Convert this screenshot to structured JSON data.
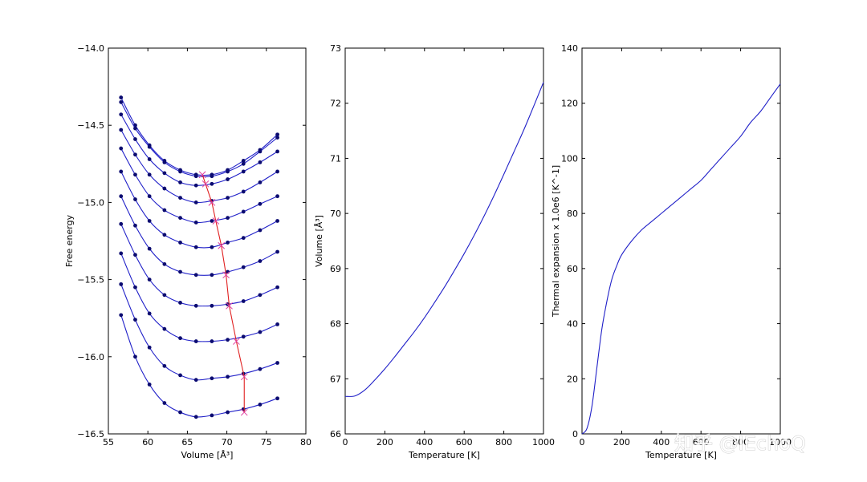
{
  "watermark": "知乎 @IEchoQ",
  "colors": {
    "curve": "#2020c8",
    "points": "#0b0b70",
    "eq_line": "#e02020",
    "eq_marker": "#e040a0"
  },
  "chart_data": [
    {
      "type": "line",
      "panel": "free-energy",
      "xlabel": "Volume [Å³]",
      "ylabel": "Free energy",
      "xlim": [
        55,
        80
      ],
      "ylim": [
        -16.5,
        -14.0
      ],
      "xticks": [
        "55",
        "60",
        "65",
        "70",
        "75",
        "80"
      ],
      "yticks": [
        "−16.5",
        "−16.0",
        "−15.5",
        "−15.0",
        "−14.5",
        "−14.0"
      ],
      "grid": false,
      "volumes": [
        56.6,
        58.4,
        60.2,
        62.1,
        64.1,
        66.1,
        68.1,
        70.1,
        72.1,
        74.2,
        76.4
      ],
      "series": [
        {
          "values": [
            -14.32,
            -14.5,
            -14.63,
            -14.73,
            -14.79,
            -14.82,
            -14.82,
            -14.79,
            -14.73,
            -14.66,
            -14.56
          ]
        },
        {
          "values": [
            -14.35,
            -14.52,
            -14.64,
            -14.74,
            -14.8,
            -14.83,
            -14.83,
            -14.8,
            -14.75,
            -14.67,
            -14.58
          ]
        },
        {
          "values": [
            -14.43,
            -14.59,
            -14.72,
            -14.81,
            -14.87,
            -14.89,
            -14.88,
            -14.85,
            -14.8,
            -14.74,
            -14.67
          ]
        },
        {
          "values": [
            -14.53,
            -14.69,
            -14.82,
            -14.91,
            -14.97,
            -15.0,
            -14.99,
            -14.97,
            -14.93,
            -14.87,
            -14.8
          ]
        },
        {
          "values": [
            -14.65,
            -14.82,
            -14.96,
            -15.05,
            -15.1,
            -15.13,
            -15.12,
            -15.1,
            -15.06,
            -15.01,
            -14.96
          ]
        },
        {
          "values": [
            -14.8,
            -14.98,
            -15.12,
            -15.21,
            -15.26,
            -15.29,
            -15.29,
            -15.26,
            -15.23,
            -15.18,
            -15.12
          ]
        },
        {
          "values": [
            -14.96,
            -15.15,
            -15.3,
            -15.4,
            -15.45,
            -15.47,
            -15.47,
            -15.45,
            -15.42,
            -15.38,
            -15.32
          ]
        },
        {
          "values": [
            -15.14,
            -15.34,
            -15.5,
            -15.6,
            -15.65,
            -15.67,
            -15.67,
            -15.66,
            -15.64,
            -15.6,
            -15.55
          ]
        },
        {
          "values": [
            -15.33,
            -15.55,
            -15.72,
            -15.82,
            -15.88,
            -15.9,
            -15.9,
            -15.89,
            -15.87,
            -15.84,
            -15.79
          ]
        },
        {
          "values": [
            -15.53,
            -15.76,
            -15.94,
            -16.06,
            -16.12,
            -16.15,
            -16.14,
            -16.13,
            -16.11,
            -16.08,
            -16.04
          ]
        },
        {
          "values": [
            -15.73,
            -16.0,
            -16.18,
            -16.3,
            -16.36,
            -16.39,
            -16.38,
            -16.36,
            -16.34,
            -16.31,
            -16.27
          ]
        }
      ],
      "equilibrium": {
        "volume": [
          66.9,
          67.3,
          68.1,
          68.6,
          69.3,
          69.9,
          70.3,
          71.2,
          72.2,
          72.2
        ],
        "energy": [
          -14.82,
          -14.88,
          -15.0,
          -15.12,
          -15.28,
          -15.47,
          -15.67,
          -15.9,
          -16.13,
          -16.36
        ]
      }
    },
    {
      "type": "line",
      "panel": "volume-vs-temperature",
      "xlabel": "Temperature [K]",
      "ylabel": "Volume [Å³]",
      "xlim": [
        0,
        1000
      ],
      "ylim": [
        66,
        73
      ],
      "xticks": [
        "0",
        "200",
        "400",
        "600",
        "800",
        "1000"
      ],
      "yticks": [
        "66",
        "67",
        "68",
        "69",
        "70",
        "71",
        "72",
        "73"
      ],
      "grid": false,
      "x": [
        0,
        50,
        100,
        150,
        200,
        250,
        300,
        350,
        400,
        450,
        500,
        550,
        600,
        650,
        700,
        750,
        800,
        850,
        900,
        950,
        1000
      ],
      "y": [
        66.68,
        66.69,
        66.8,
        66.98,
        67.18,
        67.4,
        67.63,
        67.86,
        68.11,
        68.38,
        68.66,
        68.96,
        69.27,
        69.6,
        69.95,
        70.32,
        70.71,
        71.11,
        71.51,
        71.94,
        72.38
      ]
    },
    {
      "type": "line",
      "panel": "thermal-expansion",
      "xlabel": "Temperature [K]",
      "ylabel": "Thermal expansion x 1.0e6 [K^-1]",
      "xlim": [
        0,
        1000
      ],
      "ylim": [
        0,
        140
      ],
      "xticks": [
        "0",
        "200",
        "400",
        "600",
        "800",
        "1000"
      ],
      "yticks": [
        "0",
        "20",
        "40",
        "60",
        "80",
        "100",
        "120",
        "140"
      ],
      "grid": false,
      "x": [
        0,
        25,
        50,
        75,
        100,
        125,
        150,
        175,
        200,
        250,
        300,
        350,
        400,
        450,
        500,
        550,
        600,
        650,
        700,
        750,
        800,
        850,
        900,
        950,
        1000
      ],
      "y": [
        0,
        2,
        10,
        24,
        38,
        48,
        56,
        61,
        65,
        70,
        74,
        77,
        80,
        83,
        86,
        89,
        92,
        96,
        100,
        104,
        108,
        113,
        117,
        122,
        127
      ]
    }
  ]
}
